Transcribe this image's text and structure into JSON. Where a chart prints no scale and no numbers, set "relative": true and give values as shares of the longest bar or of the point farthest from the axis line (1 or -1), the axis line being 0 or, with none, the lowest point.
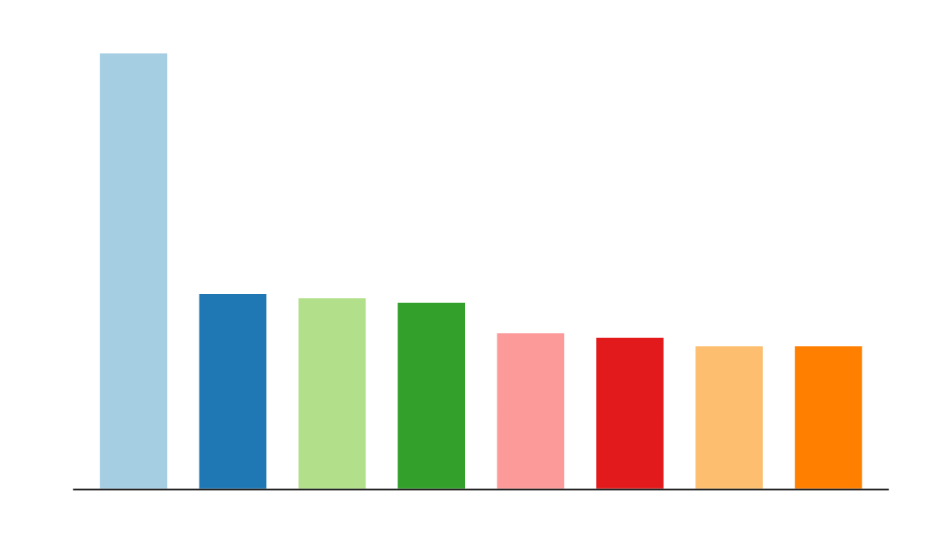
{
  "chart_data": {
    "type": "bar",
    "relative": true,
    "categories": [
      null,
      null,
      null,
      null,
      null,
      null,
      null,
      null
    ],
    "values": [
      1,
      0.45,
      0.44,
      0.43,
      0.36,
      0.35,
      0.33,
      0.33
    ],
    "colors": [
      "#a6cee3",
      "#1f78b4",
      "#b2df8a",
      "#33a02c",
      "#fb9a99",
      "#e31a1c",
      "#fdbf6f",
      "#ff7f00"
    ]
  }
}
